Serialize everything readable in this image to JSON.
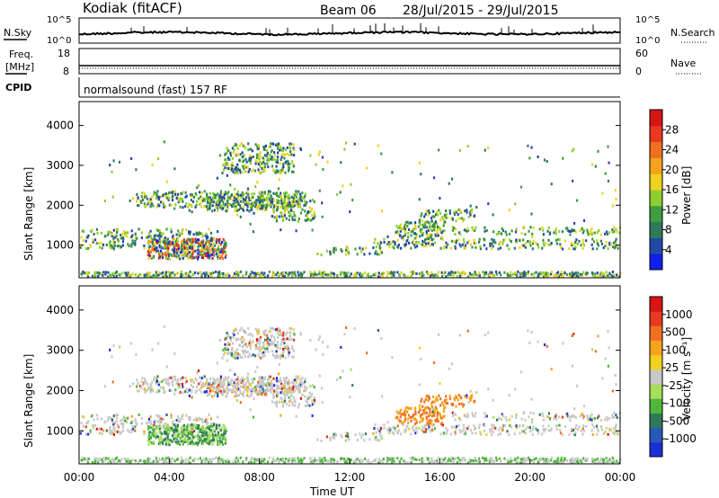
{
  "header": {
    "station": "Kodiak (fitACF)",
    "beam": "Beam 06",
    "date_range": "28/Jul/2015 - 29/Jul/2015"
  },
  "top_panels": {
    "nsky_label": "N.Sky",
    "nsearch_label": "N.Search",
    "nsky_ticks": [
      "10^5",
      "10^0"
    ],
    "nsearch_ticks": [
      "10^5",
      "10^0"
    ],
    "freq_label_1": "Freq.",
    "freq_label_2": "[MHz]",
    "freq_ticks": [
      "18",
      "8"
    ],
    "nave_label": "Nave",
    "nave_ticks": [
      "60",
      "0"
    ],
    "cpid_label": "CPID",
    "cpid_text": "normalsound (fast) 157 RF"
  },
  "chart_data": [
    {
      "type": "heatmap",
      "name": "power",
      "ylabel": "Slant Range [km]",
      "xlabel": "",
      "ylim": [
        180,
        4600
      ],
      "yticks": [
        "4000",
        "3000",
        "2000",
        "1000"
      ],
      "colorbar_label": "Power [dB]",
      "colorbar_ticks": [
        "28",
        "24",
        "20",
        "16",
        "12",
        "8",
        "4"
      ],
      "colorbar_colors": [
        "#0f1ff0",
        "#2448a8",
        "#2f7a5a",
        "#3f9c3f",
        "#8ccf2e",
        "#f0d020",
        "#f5a21c",
        "#f07020",
        "#e83a1e",
        "#d81414"
      ]
    },
    {
      "type": "heatmap",
      "name": "velocity",
      "ylabel": "Slant Range [km]",
      "xlabel": "Time UT",
      "ylim": [
        180,
        4600
      ],
      "yticks": [
        "4000",
        "3000",
        "2000",
        "1000"
      ],
      "xticks": [
        "00:00",
        "04:00",
        "08:00",
        "12:00",
        "16:00",
        "20:00",
        "00:00"
      ],
      "colorbar_label": "Velocity [m s⁻¹]",
      "colorbar_ticks": [
        "1000",
        "500",
        "100",
        "25",
        "-25",
        "-100",
        "-500",
        "-1000"
      ],
      "colorbar_colors": [
        "#1a2fd8",
        "#2a58b8",
        "#2f7a5a",
        "#4fb83a",
        "#a6dd5a",
        "#c8c8c8",
        "#f0d020",
        "#f5a21c",
        "#f07020",
        "#e83a1e",
        "#d81414"
      ]
    }
  ]
}
